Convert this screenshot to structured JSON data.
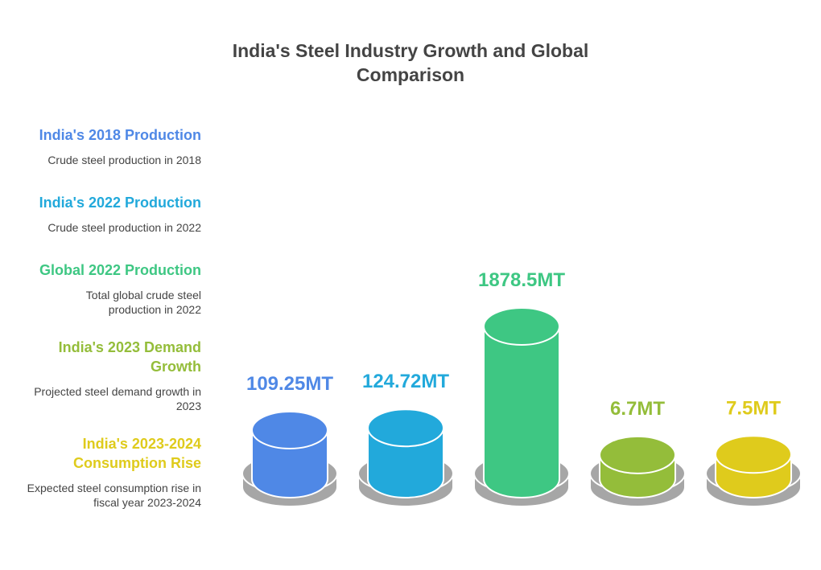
{
  "title": "India's Steel Industry Growth and Global Comparison",
  "colors": {
    "blue": "#4f88e6",
    "cyan": "#22a9db",
    "green": "#3ec783",
    "olive": "#94bd3a",
    "yellow": "#dfcb1c",
    "base": "#a6a6a6"
  },
  "chart_data": {
    "type": "bar",
    "title": "India's Steel Industry Growth and Global Comparison",
    "categories": [
      "India's 2018 Production",
      "India's 2022 Production",
      "Global 2022 Production",
      "India's 2023 Demand Growth",
      "India's 2023-2024 Consumption Rise"
    ],
    "values": [
      109.25,
      124.72,
      1878.5,
      6.7,
      7.5
    ],
    "value_labels": [
      "109.25MT",
      "124.72MT",
      "1878.5MT",
      "6.7MT",
      "7.5MT"
    ],
    "unit": "MT",
    "xlabel": "",
    "ylabel": ""
  },
  "legend": [
    {
      "title": "India's 2018 Production",
      "desc": "Crude steel production in 2018",
      "color": "#4f88e6"
    },
    {
      "title": "India's 2022 Production",
      "desc": "Crude steel production in 2022",
      "color": "#22a9db"
    },
    {
      "title": "Global 2022 Production",
      "desc": "Total global crude steel production in 2022",
      "color": "#3ec783"
    },
    {
      "title": "India's 2023 Demand Growth",
      "desc": "Projected steel demand growth in 2023",
      "color": "#94bd3a"
    },
    {
      "title": "India's 2023-2024 Consumption Rise",
      "desc": "Expected steel consumption rise in fiscal year 2023-2024",
      "color": "#dfcb1c"
    }
  ]
}
